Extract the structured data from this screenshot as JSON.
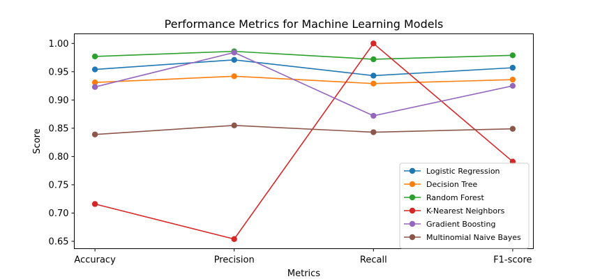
{
  "chart_data": {
    "type": "line",
    "title": "Performance Metrics for Machine Learning Models",
    "xlabel": "Metrics",
    "ylabel": "Score",
    "categories": [
      "Accuracy",
      "Precision",
      "Recall",
      "F1-score"
    ],
    "ylim": [
      0.637,
      1.017
    ],
    "yticks": [
      0.65,
      0.7,
      0.75,
      0.8,
      0.85,
      0.9,
      0.95,
      1.0
    ],
    "ytick_labels": [
      "0.65",
      "0.70",
      "0.75",
      "0.80",
      "0.85",
      "0.90",
      "0.95",
      "1.00"
    ],
    "grid": false,
    "legend_position": "lower-right",
    "series": [
      {
        "name": "Logistic Regression",
        "color": "#1f77b4",
        "values": [
          0.954,
          0.971,
          0.943,
          0.957
        ]
      },
      {
        "name": "Decision Tree",
        "color": "#ff7f0e",
        "values": [
          0.931,
          0.942,
          0.929,
          0.936
        ]
      },
      {
        "name": "Random Forest",
        "color": "#2ca02c",
        "values": [
          0.977,
          0.986,
          0.972,
          0.979
        ]
      },
      {
        "name": "K-Nearest Neighbors",
        "color": "#d62728",
        "values": [
          0.716,
          0.654,
          1.0,
          0.791
        ]
      },
      {
        "name": "Gradient Boosting",
        "color": "#9467bd",
        "values": [
          0.923,
          0.984,
          0.872,
          0.925
        ]
      },
      {
        "name": "Multinomial Naive Bayes",
        "color": "#8c564b",
        "values": [
          0.839,
          0.855,
          0.843,
          0.849
        ]
      }
    ]
  }
}
